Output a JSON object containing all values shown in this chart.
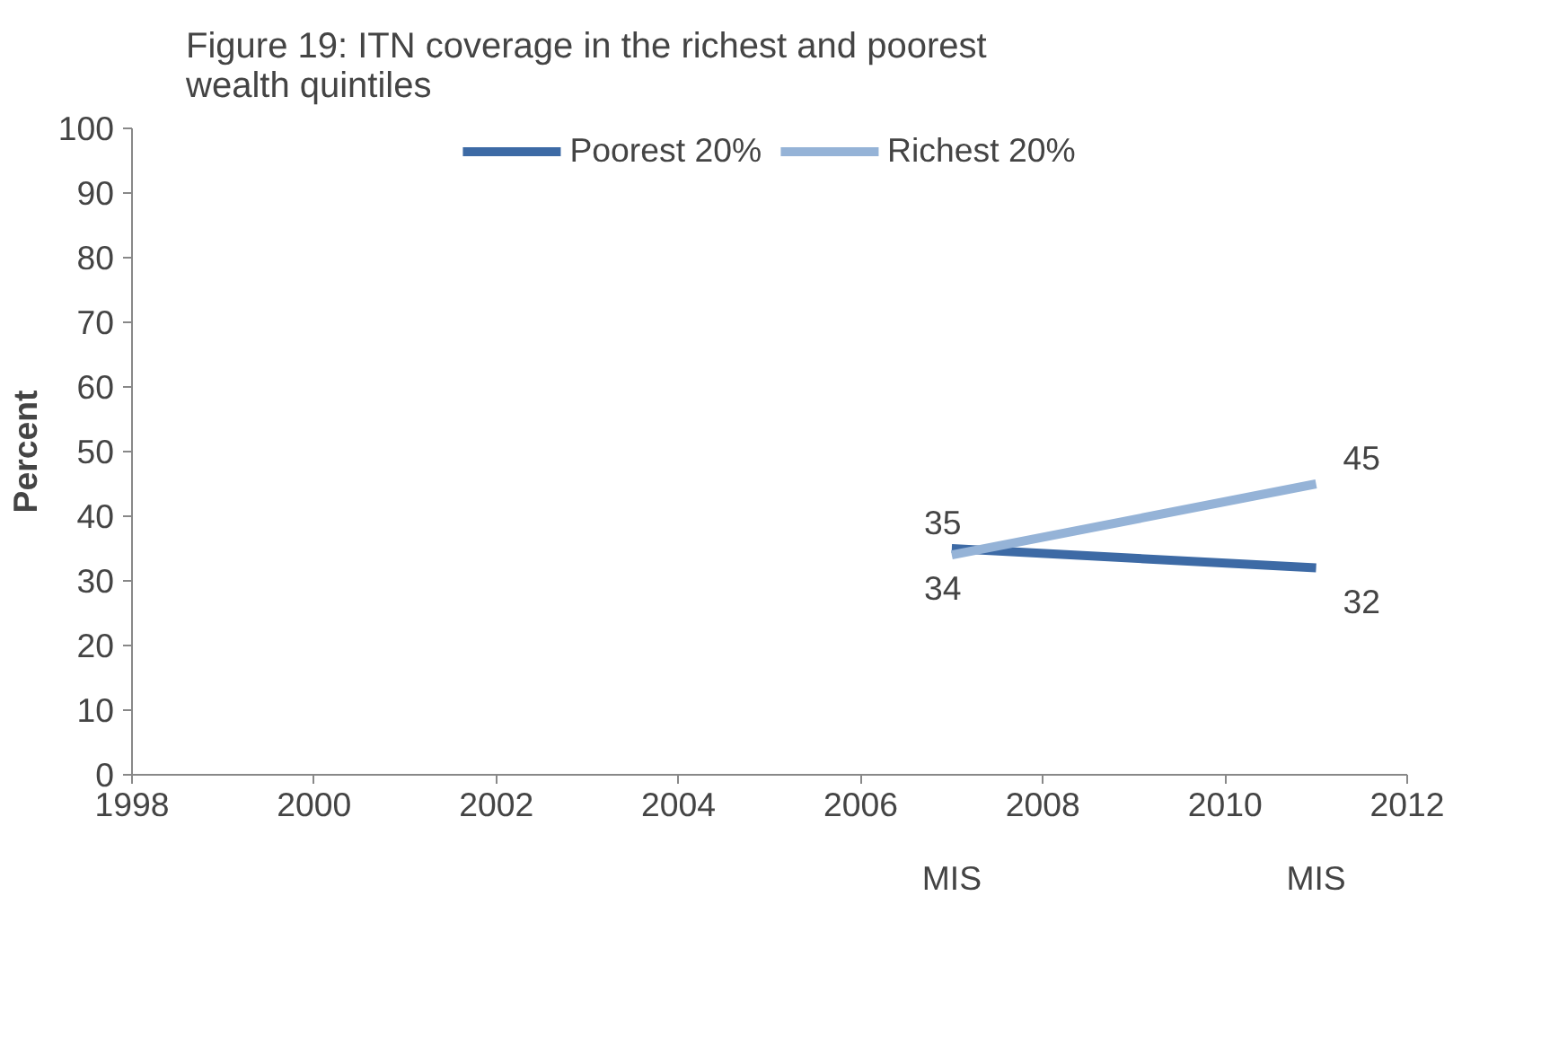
{
  "chart_data": {
    "type": "line",
    "title": "Figure 19: ITN coverage in the richest and poorest wealth quintiles",
    "ylabel": "Percent",
    "x": [
      2007,
      2011
    ],
    "series": [
      {
        "name": "Poorest 20%",
        "color": "#3d6aa5",
        "values": [
          35,
          32
        ]
      },
      {
        "name": "Richest 20%",
        "color": "#95b3d7",
        "values": [
          34,
          45
        ]
      }
    ],
    "xlim": [
      1998,
      2012
    ],
    "xticks": [
      1998,
      2000,
      2002,
      2004,
      2006,
      2008,
      2010,
      2012
    ],
    "ylim": [
      0,
      100
    ],
    "yticks": [
      0,
      10,
      20,
      30,
      40,
      50,
      60,
      70,
      80,
      90,
      100
    ],
    "annotations": [
      "MIS",
      "MIS"
    ],
    "data_labels": true,
    "grid": false,
    "legend": "top",
    "marker": "none",
    "line_style": "solid"
  }
}
